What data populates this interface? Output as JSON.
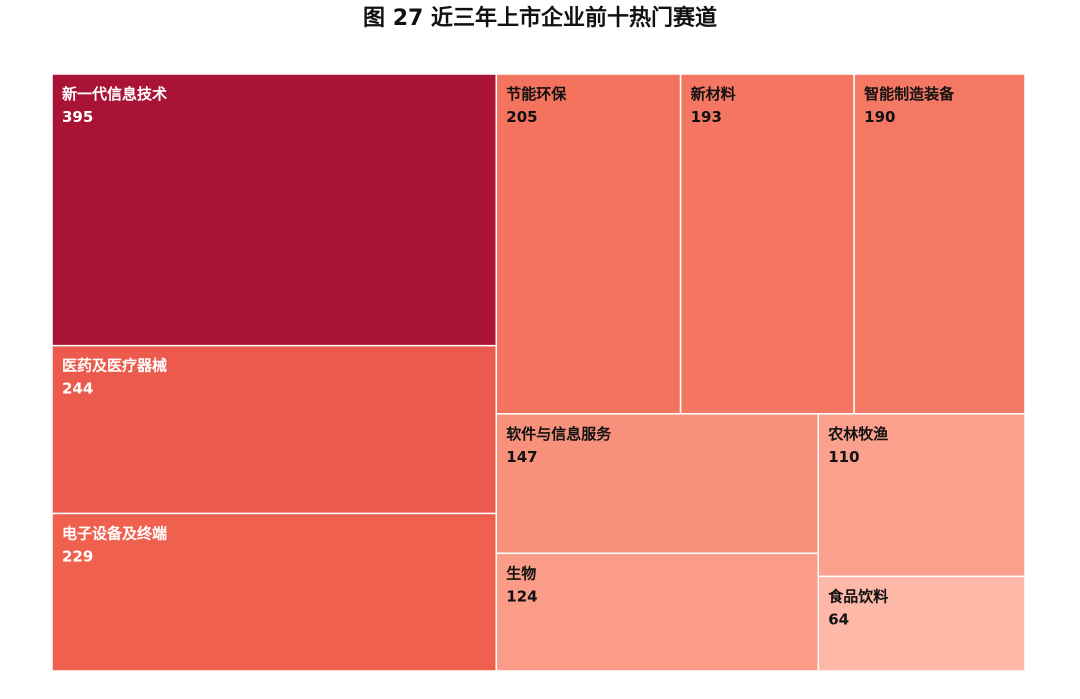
{
  "chart_data": {
    "type": "treemap",
    "title": "图 27 近三年上市企业前十热门赛道",
    "items": [
      {
        "name": "新一代信息技术",
        "value": 395,
        "color": "#a91335",
        "label_color": "#ffffff"
      },
      {
        "name": "医药及医疗器械",
        "value": 244,
        "color": "#ec5a4d",
        "label_color": "#ffffff"
      },
      {
        "name": "电子设备及终端",
        "value": 229,
        "color": "#f0604f",
        "label_color": "#ffffff"
      },
      {
        "name": "节能环保",
        "value": 205,
        "color": "#f4735f",
        "label_color": "#111111"
      },
      {
        "name": "新材料",
        "value": 193,
        "color": "#f57763",
        "label_color": "#111111"
      },
      {
        "name": "智能制造装备",
        "value": 190,
        "color": "#f57864",
        "label_color": "#111111"
      },
      {
        "name": "软件与信息服务",
        "value": 147,
        "color": "#f8917c",
        "label_color": "#111111"
      },
      {
        "name": "生物",
        "value": 124,
        "color": "#fa9c87",
        "label_color": "#111111"
      },
      {
        "name": "农林牧渔",
        "value": 110,
        "color": "#fba08c",
        "label_color": "#111111"
      },
      {
        "name": "食品饮料",
        "value": 64,
        "color": "#fdb8a8",
        "label_color": "#111111"
      }
    ]
  }
}
